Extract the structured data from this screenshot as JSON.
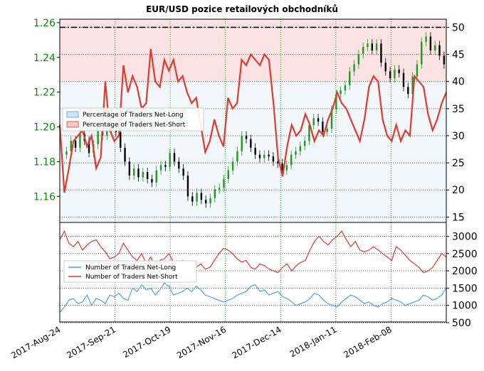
{
  "chart_data": [
    {
      "type": "line",
      "title": "EUR/USD pozice retailových obchodníků",
      "left_axis": {
        "ticks": [
          "1.16",
          "1.18",
          "1.20",
          "1.22",
          "1.24",
          "1.26"
        ],
        "range": [
          1.145,
          1.262
        ]
      },
      "right_axis": {
        "ticks": [
          "15",
          "20",
          "25",
          "30",
          "35",
          "40",
          "45",
          "50"
        ],
        "range": [
          14,
          51.5
        ]
      },
      "legend": [
        "Percentage of Traders Net-Long",
        "Percentage of Traders Net-Short"
      ],
      "legend_position": "center-left",
      "grid": true,
      "colors": {
        "net_long": "#4da3e8",
        "net_short": "#e03b30",
        "price_up": "#1f9a1f",
        "price_down": "#000000",
        "dashed_level": "#000000"
      },
      "dashed_level": 50,
      "series": [
        {
          "name": "Percentage of Traders Net-Short",
          "values": [
            32,
            19.5,
            24,
            29,
            30,
            31,
            28,
            30,
            24,
            26,
            40,
            31,
            29,
            30,
            43,
            38,
            41,
            39,
            35,
            36,
            46,
            40,
            39,
            44,
            42,
            44,
            40,
            41,
            38,
            36,
            37,
            32,
            27,
            29,
            33,
            30,
            28,
            37,
            35,
            36,
            44,
            43,
            45,
            44,
            43,
            45,
            44,
            36,
            26,
            22.5,
            28,
            32,
            30,
            31,
            34,
            32,
            29,
            31,
            30,
            33,
            35,
            38,
            36,
            35,
            33,
            31,
            29,
            33,
            39,
            41,
            40,
            33,
            30,
            29,
            32,
            29,
            31,
            30,
            41,
            40,
            39,
            34,
            31,
            33,
            36,
            38
          ]
        },
        {
          "name": "EUR/USD",
          "values": [
            1.184,
            1.186,
            1.192,
            1.188,
            1.196,
            1.192,
            1.185,
            1.19,
            1.198,
            1.195,
            1.199,
            1.201,
            1.197,
            1.188,
            1.18,
            1.172,
            1.176,
            1.171,
            1.174,
            1.17,
            1.168,
            1.175,
            1.178,
            1.177,
            1.185,
            1.18,
            1.176,
            1.172,
            1.16,
            1.157,
            1.162,
            1.158,
            1.156,
            1.159,
            1.164,
            1.165,
            1.17,
            1.175,
            1.18,
            1.186,
            1.195,
            1.193,
            1.188,
            1.184,
            1.182,
            1.184,
            1.183,
            1.18,
            1.179,
            1.175,
            1.178,
            1.184,
            1.186,
            1.189,
            1.192,
            1.201,
            1.205,
            1.203,
            1.197,
            1.199,
            1.21,
            1.219,
            1.221,
            1.224,
            1.232,
            1.236,
            1.242,
            1.246,
            1.248,
            1.244,
            1.248,
            1.237,
            1.232,
            1.228,
            1.233,
            1.231,
            1.223,
            1.219,
            1.229,
            1.236,
            1.249,
            1.252,
            1.244,
            1.247,
            1.241,
            1.236
          ]
        }
      ]
    },
    {
      "type": "line",
      "right_axis": {
        "ticks": [
          "500",
          "1000",
          "1500",
          "2000",
          "2500",
          "3000"
        ],
        "range": [
          520,
          3400
        ]
      },
      "legend": [
        "Number of Traders Net-Long",
        "Number of Traders Net-Short"
      ],
      "legend_position": "center-left",
      "grid": true,
      "colors": {
        "net_long": "#4da3e8",
        "net_short": "#e03b30"
      },
      "series": [
        {
          "name": "Number of Traders Net-Long",
          "values": [
            800,
            950,
            1150,
            1200,
            1050,
            1100,
            1300,
            1000,
            1200,
            1150,
            1050,
            1300,
            1250,
            1350,
            1200,
            1150,
            1500,
            1400,
            1600,
            1450,
            1500,
            1300,
            1450,
            1650,
            1550,
            1300,
            1350,
            1400,
            1500,
            1400,
            1550,
            1450,
            1300,
            1250,
            1200,
            1150,
            1100,
            1150,
            1200,
            1300,
            1350,
            1400,
            1550,
            1600,
            1400,
            1450,
            1300,
            1350,
            1400,
            1250,
            1200,
            1100,
            1000,
            1050,
            1100,
            1200,
            1350,
            1300,
            1150,
            1050,
            1000,
            950,
            1100,
            1200,
            1300,
            1250,
            1150,
            1050,
            1100,
            1000,
            950,
            1050,
            1100,
            1200,
            1150,
            1100,
            1000,
            1050,
            1100,
            1150,
            1300,
            1250,
            1150,
            1200,
            1300,
            1500
          ]
        },
        {
          "name": "Number of Traders Net-Short",
          "values": [
            2900,
            3150,
            2800,
            2700,
            2850,
            2600,
            2750,
            2850,
            2900,
            2700,
            2550,
            2350,
            2400,
            2500,
            2800,
            2600,
            2400,
            2300,
            2500,
            2200,
            2400,
            2100,
            2300,
            2350,
            2500,
            2250,
            2150,
            2300,
            2200,
            1950,
            2100,
            2200,
            2050,
            2100,
            2300,
            2500,
            2650,
            2600,
            2500,
            2350,
            2250,
            2300,
            2100,
            2050,
            2200,
            2150,
            2050,
            2000,
            1950,
            2100,
            2200,
            2000,
            2150,
            2250,
            2300,
            2600,
            2850,
            3000,
            2850,
            2750,
            2900,
            3000,
            3150,
            2900,
            2700,
            2850,
            2600,
            2550,
            2600,
            2700,
            2600,
            2500,
            2400,
            2300,
            2700,
            2600,
            2450,
            2300,
            2200,
            2100,
            1950,
            2000,
            2100,
            2300,
            2500,
            2400
          ]
        }
      ]
    }
  ],
  "x_axis": {
    "ticks": [
      "2017-Aug-24",
      "2017-Sep-21",
      "2017-Oct-19",
      "2017-Nov-16",
      "2017-Dec-14",
      "2018-Jan-11",
      "2018-Feb-08"
    ]
  }
}
